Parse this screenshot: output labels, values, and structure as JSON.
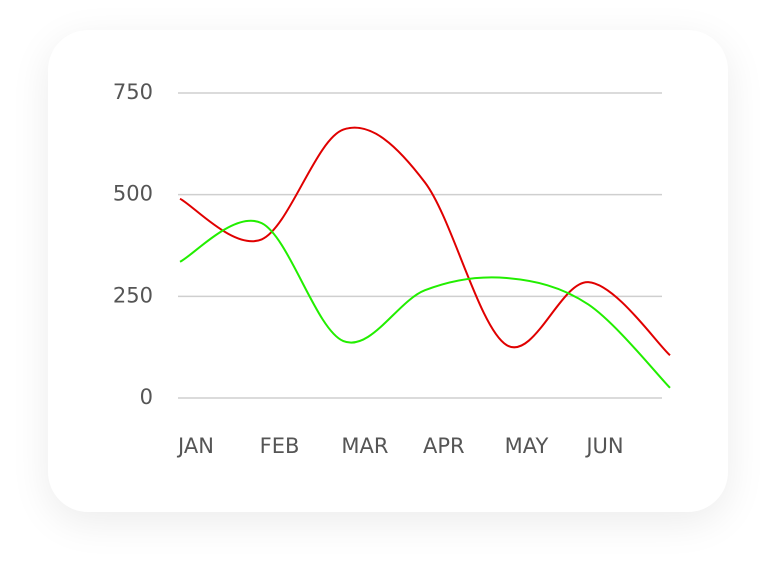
{
  "chart_data": {
    "type": "line",
    "categories": [
      "JAN",
      "FEB",
      "MAR",
      "APR",
      "MAY",
      "JUN",
      null
    ],
    "series": [
      {
        "color": "#e00000",
        "values": [
          490,
          390,
          660,
          530,
          130,
          285,
          105
        ]
      },
      {
        "color": "#22ee00",
        "values": [
          335,
          430,
          140,
          265,
          295,
          230,
          25
        ]
      }
    ],
    "ylim": [
      0,
      750
    ],
    "yticks": [
      0,
      250,
      500,
      750
    ],
    "grid": true
  }
}
